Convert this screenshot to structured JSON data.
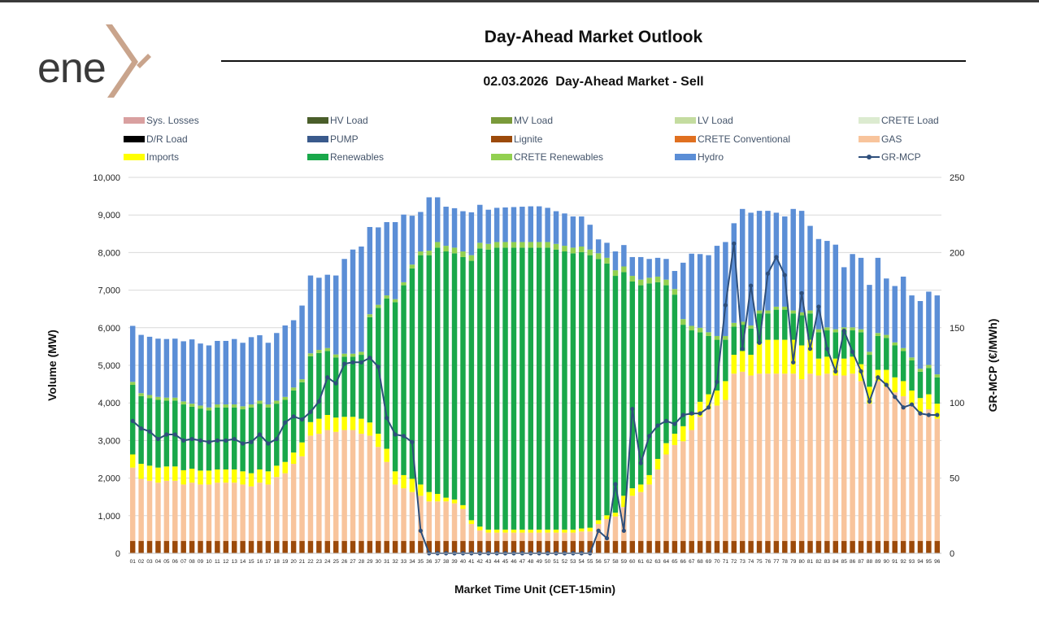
{
  "page": {
    "logo_text": "ene",
    "title": "Day-Ahead Market Outlook",
    "subtitle": "02.03.2026  Day-Ahead Market - Sell"
  },
  "colors": {
    "logo_text": "#3a3a3a",
    "logo_x": "#c9a48c",
    "grid": "#d9d9d9",
    "line": "#2e4f7c"
  },
  "chart_data": {
    "type": "bar",
    "stacked": true,
    "xlabel": "Market Time Unit (CET-15min)",
    "ylabel": "Volume (MW)",
    "y2label": "GR-MCP (€/MWh)",
    "ylim": [
      0,
      10000
    ],
    "y2lim": [
      0,
      250
    ],
    "yticks": [
      "0",
      "1,000",
      "2,000",
      "3,000",
      "4,000",
      "5,000",
      "6,000",
      "7,000",
      "8,000",
      "9,000",
      "10,000"
    ],
    "y2ticks": [
      "0",
      "50",
      "100",
      "150",
      "200",
      "250"
    ],
    "grid": true,
    "legend_position": "top",
    "categories": [
      "01",
      "02",
      "03",
      "04",
      "05",
      "06",
      "07",
      "08",
      "09",
      "10",
      "11",
      "12",
      "13",
      "14",
      "15",
      "16",
      "17",
      "18",
      "19",
      "20",
      "21",
      "22",
      "23",
      "24",
      "25",
      "26",
      "27",
      "28",
      "29",
      "30",
      "31",
      "32",
      "33",
      "34",
      "35",
      "36",
      "37",
      "38",
      "39",
      "40",
      "41",
      "42",
      "43",
      "44",
      "45",
      "46",
      "47",
      "48",
      "49",
      "50",
      "51",
      "52",
      "53",
      "54",
      "55",
      "56",
      "57",
      "58",
      "59",
      "60",
      "61",
      "62",
      "63",
      "64",
      "65",
      "66",
      "67",
      "68",
      "69",
      "70",
      "71",
      "72",
      "73",
      "74",
      "75",
      "76",
      "77",
      "78",
      "79",
      "80",
      "81",
      "82",
      "83",
      "84",
      "85",
      "86",
      "87",
      "88",
      "89",
      "90",
      "91",
      "92",
      "93",
      "94",
      "95",
      "96"
    ],
    "legend": [
      {
        "name": "Sys. Losses",
        "color": "#d9a0a0",
        "kind": "bar"
      },
      {
        "name": "HV Load",
        "color": "#4a5e2a",
        "kind": "bar"
      },
      {
        "name": "MV Load",
        "color": "#7a9a3a",
        "kind": "bar"
      },
      {
        "name": "LV Load",
        "color": "#c4dca0",
        "kind": "bar"
      },
      {
        "name": "CRETE Load",
        "color": "#dcebd0",
        "kind": "bar"
      },
      {
        "name": "D/R Load",
        "color": "#000000",
        "kind": "bar"
      },
      {
        "name": "PUMP",
        "color": "#3a5a8c",
        "kind": "bar"
      },
      {
        "name": "Lignite",
        "color": "#9c4a0a",
        "kind": "bar"
      },
      {
        "name": "CRETE Conventional",
        "color": "#e07020",
        "kind": "bar"
      },
      {
        "name": "GAS",
        "color": "#f8c49c",
        "kind": "bar"
      },
      {
        "name": "Imports",
        "color": "#ffff00",
        "kind": "bar"
      },
      {
        "name": "Renewables",
        "color": "#19a84a",
        "kind": "bar"
      },
      {
        "name": "CRETE Renewables",
        "color": "#92d050",
        "kind": "bar"
      },
      {
        "name": "Hydro",
        "color": "#5b8ed6",
        "kind": "bar"
      },
      {
        "name": "GR-MCP",
        "color": "#2e4f7c",
        "kind": "line"
      }
    ],
    "series": [
      {
        "name": "Lignite",
        "color": "#9c4a0a",
        "values": [
          330,
          330,
          330,
          330,
          330,
          330,
          330,
          330,
          330,
          330,
          330,
          330,
          330,
          330,
          330,
          330,
          330,
          330,
          330,
          330,
          330,
          330,
          330,
          330,
          330,
          330,
          330,
          330,
          330,
          330,
          330,
          330,
          330,
          330,
          330,
          330,
          330,
          330,
          330,
          330,
          330,
          330,
          330,
          330,
          330,
          330,
          330,
          330,
          330,
          330,
          330,
          330,
          330,
          330,
          330,
          330,
          330,
          330,
          330,
          330,
          330,
          330,
          330,
          330,
          330,
          330,
          330,
          330,
          330,
          330,
          330,
          330,
          330,
          330,
          330,
          330,
          330,
          330,
          330,
          330,
          330,
          330,
          330,
          330,
          330,
          330,
          330,
          330,
          330,
          330,
          330,
          330,
          330,
          330,
          330,
          330
        ]
      },
      {
        "name": "GAS",
        "color": "#f8c49c",
        "values": [
          1950,
          1650,
          1600,
          1550,
          1600,
          1600,
          1500,
          1550,
          1500,
          1500,
          1550,
          1550,
          1550,
          1500,
          1450,
          1550,
          1500,
          1700,
          1800,
          2050,
          2250,
          2800,
          2850,
          2950,
          2900,
          2950,
          2950,
          2850,
          2800,
          2500,
          2100,
          1500,
          1400,
          1300,
          1200,
          1050,
          1050,
          1050,
          1000,
          850,
          450,
          280,
          220,
          220,
          220,
          220,
          220,
          220,
          220,
          220,
          220,
          220,
          220,
          250,
          250,
          450,
          580,
          650,
          900,
          1200,
          1300,
          1500,
          1900,
          2300,
          2550,
          2650,
          2950,
          3300,
          3500,
          3600,
          3750,
          4450,
          4500,
          4400,
          4450,
          4450,
          4450,
          4450,
          4450,
          4300,
          4450,
          4400,
          4450,
          4400,
          4400,
          4450,
          4250,
          3650,
          4250,
          4100,
          3950,
          3850,
          3600,
          3400,
          3500,
          3250
        ]
      },
      {
        "name": "Imports",
        "color": "#ffff00",
        "values": [
          350,
          400,
          400,
          400,
          380,
          380,
          380,
          370,
          370,
          370,
          350,
          350,
          350,
          350,
          350,
          350,
          350,
          300,
          300,
          300,
          370,
          360,
          400,
          400,
          380,
          350,
          350,
          400,
          350,
          350,
          350,
          350,
          350,
          350,
          300,
          250,
          200,
          100,
          100,
          100,
          100,
          100,
          80,
          80,
          80,
          80,
          80,
          80,
          80,
          80,
          80,
          80,
          80,
          80,
          100,
          100,
          100,
          100,
          300,
          200,
          200,
          250,
          280,
          300,
          300,
          400,
          400,
          400,
          400,
          400,
          500,
          500,
          550,
          550,
          800,
          900,
          900,
          900,
          900,
          900,
          900,
          450,
          450,
          450,
          450,
          450,
          450,
          450,
          300,
          450,
          400,
          400,
          400,
          400,
          400,
          400
        ]
      },
      {
        "name": "Renewables",
        "color": "#19a84a",
        "values": [
          1850,
          1800,
          1800,
          1800,
          1750,
          1750,
          1750,
          1650,
          1650,
          1600,
          1650,
          1650,
          1650,
          1650,
          1750,
          1750,
          1700,
          1650,
          1650,
          1650,
          1600,
          1750,
          1750,
          1700,
          1600,
          1600,
          1600,
          1700,
          2800,
          3350,
          4000,
          4500,
          5050,
          5600,
          6100,
          6300,
          6550,
          6550,
          6550,
          6600,
          6900,
          7400,
          7450,
          7500,
          7500,
          7500,
          7500,
          7500,
          7500,
          7500,
          7450,
          7400,
          7350,
          7350,
          7250,
          6950,
          6700,
          6300,
          5950,
          5500,
          5300,
          5100,
          4700,
          4200,
          3700,
          2700,
          2250,
          1850,
          1550,
          1350,
          1100,
          750,
          700,
          700,
          800,
          700,
          800,
          800,
          700,
          800,
          700,
          700,
          700,
          700,
          750,
          700,
          850,
          850,
          900,
          850,
          850,
          800,
          800,
          700,
          700,
          700
        ]
      },
      {
        "name": "CRETE Renewables",
        "color": "#92d050",
        "values": [
          80,
          80,
          80,
          80,
          80,
          80,
          80,
          80,
          80,
          80,
          80,
          80,
          80,
          80,
          80,
          80,
          80,
          80,
          80,
          80,
          80,
          80,
          80,
          80,
          80,
          80,
          80,
          80,
          80,
          80,
          80,
          80,
          80,
          100,
          100,
          120,
          150,
          150,
          150,
          150,
          150,
          150,
          150,
          150,
          150,
          150,
          150,
          150,
          150,
          150,
          150,
          150,
          150,
          150,
          150,
          150,
          150,
          150,
          150,
          150,
          150,
          150,
          150,
          150,
          150,
          150,
          120,
          120,
          100,
          100,
          100,
          100,
          80,
          80,
          80,
          80,
          80,
          80,
          80,
          80,
          80,
          80,
          80,
          80,
          80,
          80,
          80,
          80,
          80,
          80,
          80,
          80,
          80,
          80,
          80,
          80
        ]
      },
      {
        "name": "Hydro",
        "color": "#5b8ed6",
        "values": [
          1490,
          1550,
          1550,
          1550,
          1560,
          1570,
          1600,
          1710,
          1650,
          1650,
          1690,
          1690,
          1740,
          1690,
          1790,
          1740,
          1640,
          1800,
          1900,
          1790,
          1960,
          2070,
          1920,
          1950,
          2100,
          2520,
          2770,
          2800,
          2320,
          2060,
          1950,
          2050,
          1800,
          1300,
          1050,
          1420,
          1190,
          1040,
          1050,
          1070,
          1140,
          1010,
          910,
          910,
          920,
          930,
          940,
          950,
          950,
          910,
          870,
          860,
          830,
          800,
          660,
          370,
          400,
          500,
          570,
          500,
          600,
          500,
          500,
          550,
          480,
          1500,
          1920,
          1960,
          2050,
          2400,
          2500,
          2650,
          3000,
          3000,
          2650,
          2650,
          2500,
          2400,
          2700,
          2700,
          2250,
          2400,
          2300,
          2250,
          1600,
          1950,
          1900,
          1780,
          2000,
          1500,
          1500,
          1900,
          1650,
          1800,
          1950,
          2100
        ]
      }
    ],
    "line": {
      "name": "GR-MCP",
      "color": "#2e4f7c",
      "values": [
        88,
        83,
        81,
        76,
        79,
        79,
        75,
        76,
        75,
        74,
        75,
        75,
        76,
        73,
        74,
        79,
        73,
        76,
        87,
        91,
        89,
        94,
        101,
        117,
        113,
        126,
        127,
        127,
        130,
        124,
        90,
        79,
        78,
        74,
        15,
        0,
        0,
        0,
        0,
        0,
        0,
        0,
        0,
        0,
        0,
        0,
        0,
        0,
        0,
        0,
        0,
        0,
        0,
        0,
        0,
        15,
        10,
        46,
        15,
        96,
        60,
        78,
        85,
        88,
        86,
        92,
        93,
        93,
        97,
        114,
        165,
        206,
        136,
        178,
        140,
        186,
        197,
        185,
        127,
        173,
        136,
        164,
        136,
        121,
        148,
        134,
        121,
        101,
        117,
        112,
        104,
        97,
        99,
        93,
        92,
        92
      ]
    }
  }
}
